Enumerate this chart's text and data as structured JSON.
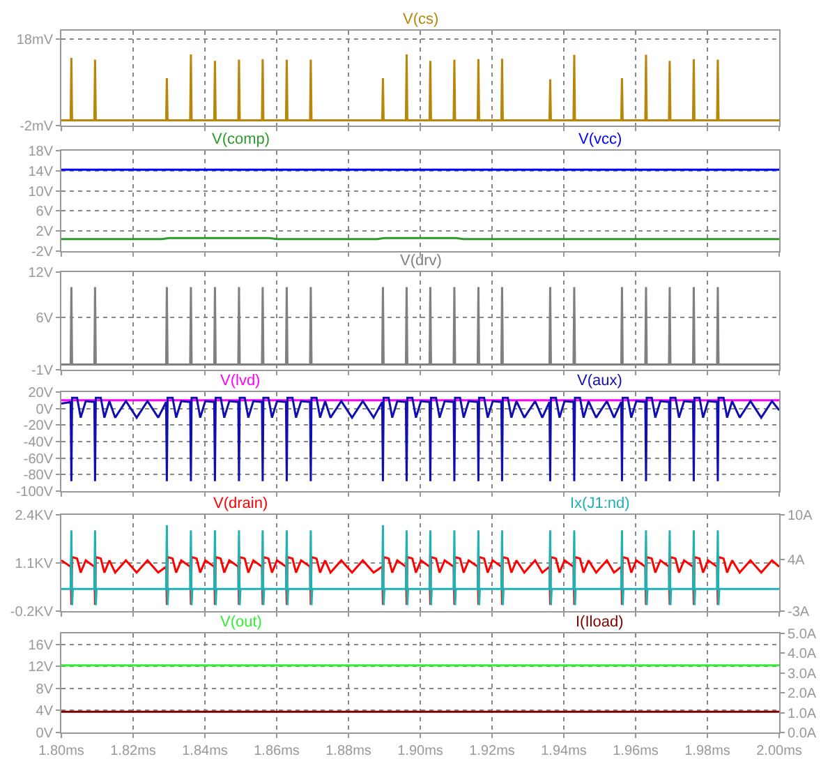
{
  "chart_data": [
    {
      "type": "line",
      "line_style": "solid",
      "grid": true,
      "tick_labels": "y",
      "xlim": [
        1.8,
        2.0
      ],
      "xticks": [
        {
          "value": 1.8,
          "label": null
        },
        {
          "value": 1.82,
          "label": null
        },
        {
          "value": 1.84,
          "label": null
        },
        {
          "value": 1.86,
          "label": null
        },
        {
          "value": 1.88,
          "label": null
        },
        {
          "value": 1.9,
          "label": null
        },
        {
          "value": 1.92,
          "label": null
        },
        {
          "value": 1.94,
          "label": null
        },
        {
          "value": 1.96,
          "label": null
        },
        {
          "value": 1.98,
          "label": null
        },
        {
          "value": 2.0,
          "label": null
        }
      ],
      "ylim": [
        -2,
        20
      ],
      "yticks": [
        {
          "value": -2,
          "label": "-2mV"
        },
        {
          "value": 18,
          "label": "18mV"
        }
      ],
      "series": [
        {
          "name": "V(cs)",
          "color": "#b8860b",
          "x": [
            1.8,
            1.8026,
            1.8028,
            1.803,
            1.8092,
            1.8094,
            1.8096,
            1.8292,
            1.8294,
            1.8296,
            1.8359,
            1.8361,
            1.8363,
            1.8426,
            1.8428,
            1.843,
            1.8493,
            1.8495,
            1.8497,
            1.8559,
            1.8561,
            1.8563,
            1.8626,
            1.8628,
            1.863,
            1.8693,
            1.8695,
            1.8697,
            1.8894,
            1.8896,
            1.8898,
            1.896,
            1.8962,
            1.8964,
            1.9026,
            1.9028,
            1.903,
            1.9093,
            1.9095,
            1.9097,
            1.916,
            1.9162,
            1.9164,
            1.9226,
            1.9228,
            1.923,
            1.936,
            1.9362,
            1.9364,
            1.9427,
            1.9429,
            1.9431,
            1.956,
            1.9562,
            1.9564,
            1.9627,
            1.9629,
            1.9631,
            1.9693,
            1.9695,
            1.9697,
            1.976,
            1.9762,
            1.9764,
            1.9827,
            1.9829,
            1.9831,
            2.0
          ],
          "values": [
            -0.8,
            -0.8,
            13.7,
            -0.8,
            -0.8,
            13.3,
            -0.8,
            -0.8,
            9.0,
            -0.8,
            -0.8,
            14.5,
            -0.8,
            -0.8,
            13.0,
            -0.8,
            -0.8,
            13.3,
            -0.8,
            -0.8,
            13.4,
            -0.8,
            -0.8,
            13.3,
            -0.8,
            -0.8,
            13.3,
            -0.8,
            -0.8,
            9.0,
            -0.8,
            -0.8,
            14.5,
            -0.8,
            -0.8,
            13.0,
            -0.8,
            -0.8,
            13.3,
            -0.8,
            -0.8,
            13.4,
            -0.8,
            -0.8,
            13.5,
            -0.8,
            -0.8,
            8.7,
            -0.8,
            -0.8,
            14.4,
            -0.8,
            -0.8,
            9.0,
            -0.8,
            -0.8,
            14.4,
            -0.8,
            -0.8,
            13.0,
            -0.8,
            -0.8,
            13.4,
            -0.8,
            -0.8,
            13.3,
            -0.8,
            -0.8
          ]
        }
      ]
    },
    {
      "type": "line",
      "line_style": "solid",
      "grid": true,
      "tick_labels": "y",
      "xlim": [
        1.8,
        2.0
      ],
      "xticks": [
        {
          "value": 1.8,
          "label": null
        },
        {
          "value": 1.82,
          "label": null
        },
        {
          "value": 1.84,
          "label": null
        },
        {
          "value": 1.86,
          "label": null
        },
        {
          "value": 1.88,
          "label": null
        },
        {
          "value": 1.9,
          "label": null
        },
        {
          "value": 1.92,
          "label": null
        },
        {
          "value": 1.94,
          "label": null
        },
        {
          "value": 1.96,
          "label": null
        },
        {
          "value": 1.98,
          "label": null
        },
        {
          "value": 2.0,
          "label": null
        }
      ],
      "ylim": [
        -2,
        18
      ],
      "yticks": [
        {
          "value": -2,
          "label": "-2V"
        },
        {
          "value": 2,
          "label": "2V"
        },
        {
          "value": 6,
          "label": "6V"
        },
        {
          "value": 10,
          "label": "10V"
        },
        {
          "value": 14,
          "label": "14V"
        },
        {
          "value": 18,
          "label": "18V"
        }
      ],
      "series": [
        {
          "name": "V(comp)",
          "color": "#2e9a2e",
          "x": [
            1.8,
            1.828,
            1.83,
            1.858,
            1.86,
            1.888,
            1.89,
            1.91,
            1.912,
            2.0
          ],
          "values": [
            0.4,
            0.4,
            0.6,
            0.6,
            0.4,
            0.4,
            0.6,
            0.6,
            0.4,
            0.4
          ]
        },
        {
          "name": "V(vcc)",
          "color": "#0000ff",
          "x": [
            1.8,
            2.0
          ],
          "values": [
            14.2,
            14.2
          ]
        }
      ]
    },
    {
      "type": "line",
      "line_style": "solid",
      "grid": true,
      "tick_labels": "y",
      "xlim": [
        1.8,
        2.0
      ],
      "xticks": [
        {
          "value": 1.8,
          "label": null
        },
        {
          "value": 1.82,
          "label": null
        },
        {
          "value": 1.84,
          "label": null
        },
        {
          "value": 1.86,
          "label": null
        },
        {
          "value": 1.88,
          "label": null
        },
        {
          "value": 1.9,
          "label": null
        },
        {
          "value": 1.92,
          "label": null
        },
        {
          "value": 1.94,
          "label": null
        },
        {
          "value": 1.96,
          "label": null
        },
        {
          "value": 1.98,
          "label": null
        },
        {
          "value": 2.0,
          "label": null
        }
      ],
      "ylim": [
        -1,
        12
      ],
      "yticks": [
        {
          "value": -1,
          "label": "-1V"
        },
        {
          "value": 6,
          "label": "6V"
        },
        {
          "value": 12,
          "label": "12V"
        }
      ],
      "series": [
        {
          "name": "V(drv)",
          "color": "#808080",
          "x": [
            1.8,
            1.8026,
            1.8028,
            1.803,
            1.8092,
            1.8094,
            1.8096,
            1.8292,
            1.8294,
            1.8296,
            1.8359,
            1.8361,
            1.8363,
            1.8426,
            1.8428,
            1.843,
            1.8493,
            1.8495,
            1.8497,
            1.8559,
            1.8561,
            1.8563,
            1.8626,
            1.8628,
            1.863,
            1.8693,
            1.8695,
            1.8697,
            1.8894,
            1.8896,
            1.8898,
            1.896,
            1.8962,
            1.8964,
            1.9026,
            1.9028,
            1.903,
            1.9093,
            1.9095,
            1.9097,
            1.916,
            1.9162,
            1.9164,
            1.9226,
            1.9228,
            1.923,
            1.936,
            1.9362,
            1.9364,
            1.9427,
            1.9429,
            1.9431,
            1.956,
            1.9562,
            1.9564,
            1.9627,
            1.9629,
            1.9631,
            1.9693,
            1.9695,
            1.9697,
            1.976,
            1.9762,
            1.9764,
            1.9827,
            1.9829,
            1.9831,
            2.0
          ],
          "values": [
            -0.3,
            -0.3,
            10,
            -0.3,
            -0.3,
            10,
            -0.3,
            -0.3,
            10,
            -0.3,
            -0.3,
            10,
            -0.3,
            -0.3,
            10,
            -0.3,
            -0.3,
            10,
            -0.3,
            -0.3,
            10,
            -0.3,
            -0.3,
            10,
            -0.3,
            -0.3,
            10,
            -0.3,
            -0.3,
            10,
            -0.3,
            -0.3,
            10,
            -0.3,
            -0.3,
            10,
            -0.3,
            -0.3,
            10,
            -0.3,
            -0.3,
            10,
            -0.3,
            -0.3,
            10,
            -0.3,
            -0.3,
            10,
            -0.3,
            -0.3,
            10,
            -0.3,
            -0.3,
            10,
            -0.3,
            -0.3,
            10,
            -0.3,
            -0.3,
            10,
            -0.3,
            -0.3,
            10,
            -0.3,
            -0.3,
            10,
            -0.3,
            -0.3
          ]
        }
      ]
    },
    {
      "type": "line",
      "line_style": "solid",
      "grid": true,
      "tick_labels": "y",
      "xlim": [
        1.8,
        2.0
      ],
      "xticks": [
        {
          "value": 1.8,
          "label": null
        },
        {
          "value": 1.82,
          "label": null
        },
        {
          "value": 1.84,
          "label": null
        },
        {
          "value": 1.86,
          "label": null
        },
        {
          "value": 1.88,
          "label": null
        },
        {
          "value": 1.9,
          "label": null
        },
        {
          "value": 1.92,
          "label": null
        },
        {
          "value": 1.94,
          "label": null
        },
        {
          "value": 1.96,
          "label": null
        },
        {
          "value": 1.98,
          "label": null
        },
        {
          "value": 2.0,
          "label": null
        }
      ],
      "ylim": [
        -100,
        20
      ],
      "yticks": [
        {
          "value": -100,
          "label": "-100V"
        },
        {
          "value": -80,
          "label": "-80V"
        },
        {
          "value": -60,
          "label": "-60V"
        },
        {
          "value": -40,
          "label": "-40V"
        },
        {
          "value": -20,
          "label": "-20V"
        },
        {
          "value": 0,
          "label": "0V"
        },
        {
          "value": 20,
          "label": "20V"
        }
      ],
      "series": [
        {
          "name": "V(lvd)",
          "color": "#ff00ff",
          "x": [
            1.8,
            2.0
          ],
          "values": [
            10,
            10
          ]
        },
        {
          "name": "V(aux)",
          "color": "#1010b0",
          "x": [
            1.8,
            1.8026,
            1.8028,
            1.803,
            1.8044,
            1.8054,
            1.8068,
            1.8092,
            1.8094,
            1.8096,
            1.811,
            1.812,
            1.8134,
            1.815,
            1.818,
            1.821,
            1.824,
            1.827,
            1.8292,
            1.8294,
            1.8296,
            1.831,
            1.832,
            1.8334,
            1.8359,
            1.8361,
            1.8363,
            1.8377,
            1.8387,
            1.8401,
            1.8426,
            1.8428,
            1.843,
            1.8444,
            1.8454,
            1.8468,
            1.8493,
            1.8495,
            1.8497,
            1.8511,
            1.8521,
            1.8535,
            1.8559,
            1.8561,
            1.8563,
            1.8577,
            1.8587,
            1.8601,
            1.8626,
            1.8628,
            1.863,
            1.8644,
            1.8654,
            1.8668,
            1.8693,
            1.8695,
            1.8697,
            1.8711,
            1.8721,
            1.8735,
            1.875,
            1.878,
            1.881,
            1.884,
            1.887,
            1.8894,
            1.8896,
            1.8898,
            1.8912,
            1.8922,
            1.8936,
            1.896,
            1.8962,
            1.8964,
            1.8978,
            1.8988,
            1.9002,
            1.9026,
            1.9028,
            1.903,
            1.9044,
            1.9054,
            1.9068,
            1.9093,
            1.9095,
            1.9097,
            1.9111,
            1.9121,
            1.9135,
            1.916,
            1.9162,
            1.9164,
            1.9178,
            1.9188,
            1.9202,
            1.9226,
            1.9228,
            1.923,
            1.9244,
            1.9254,
            1.9268,
            1.929,
            1.932,
            1.934,
            1.936,
            1.9362,
            1.9364,
            1.9378,
            1.9388,
            1.9402,
            1.9427,
            1.9429,
            1.9431,
            1.9445,
            1.9455,
            1.9469,
            1.949,
            1.952,
            1.954,
            1.956,
            1.9562,
            1.9564,
            1.9578,
            1.9588,
            1.9602,
            1.9627,
            1.9629,
            1.9631,
            1.9645,
            1.9655,
            1.9669,
            1.9693,
            1.9695,
            1.9697,
            1.9711,
            1.9721,
            1.9735,
            1.976,
            1.9762,
            1.9764,
            1.9778,
            1.9788,
            1.9802,
            1.9827,
            1.9829,
            1.9831,
            1.9845,
            1.9855,
            1.9869,
            1.989,
            1.992,
            1.995,
            1.998,
            2.0
          ],
          "values": [
            6,
            8,
            -88,
            13,
            13,
            -11,
            9,
            8,
            -88,
            13,
            13,
            -11,
            9,
            -11,
            9,
            -11,
            9,
            -11,
            8,
            -88,
            13,
            13,
            -11,
            9,
            8,
            -88,
            13,
            13,
            -11,
            9,
            8,
            -88,
            13,
            13,
            -11,
            9,
            8,
            -88,
            13,
            13,
            -11,
            9,
            8,
            -88,
            13,
            13,
            -11,
            9,
            8,
            -88,
            13,
            13,
            -11,
            9,
            8,
            -88,
            13,
            13,
            -11,
            9,
            -11,
            9,
            -11,
            9,
            -11,
            8,
            -88,
            13,
            13,
            -11,
            9,
            8,
            -88,
            13,
            13,
            -11,
            9,
            8,
            -88,
            13,
            13,
            -11,
            9,
            8,
            -88,
            13,
            13,
            -11,
            9,
            8,
            -88,
            13,
            13,
            -11,
            9,
            8,
            -88,
            13,
            13,
            -11,
            9,
            -11,
            9,
            -11,
            8,
            -88,
            13,
            13,
            -11,
            9,
            8,
            -88,
            13,
            13,
            -11,
            9,
            -11,
            9,
            -11,
            8,
            -88,
            13,
            13,
            -11,
            9,
            8,
            -88,
            13,
            13,
            -11,
            9,
            8,
            -88,
            13,
            13,
            -11,
            9,
            8,
            -88,
            13,
            13,
            -11,
            9,
            8,
            -88,
            13,
            13,
            -11,
            9,
            -11,
            9,
            -11,
            9,
            -2
          ]
        }
      ]
    },
    {
      "type": "line",
      "line_style": "solid",
      "grid": true,
      "tick_labels": "y",
      "xlim": [
        1.8,
        2.0
      ],
      "xticks": [
        {
          "value": 1.8,
          "label": null
        },
        {
          "value": 1.82,
          "label": null
        },
        {
          "value": 1.84,
          "label": null
        },
        {
          "value": 1.86,
          "label": null
        },
        {
          "value": 1.88,
          "label": null
        },
        {
          "value": 1.9,
          "label": null
        },
        {
          "value": 1.92,
          "label": null
        },
        {
          "value": 1.94,
          "label": null
        },
        {
          "value": 1.96,
          "label": null
        },
        {
          "value": 1.98,
          "label": null
        },
        {
          "value": 2.0,
          "label": null
        }
      ],
      "ylim": [
        -0.2,
        2.4
      ],
      "yticks": [
        {
          "value": -0.2,
          "label": "-0.2KV"
        },
        {
          "value": 1.1,
          "label": "1.1KV"
        },
        {
          "value": 2.4,
          "label": "2.4KV"
        }
      ],
      "y2lim": [
        -3,
        10
      ],
      "y2ticks": [
        {
          "value": -3,
          "label": "-3A"
        },
        {
          "value": 4,
          "label": "4A"
        },
        {
          "value": 10,
          "label": "10A"
        }
      ],
      "series": [
        {
          "name": "V(drain)",
          "color": "#ff0000",
          "x": [
            1.8,
            1.8026,
            1.8028,
            1.803,
            1.8044,
            1.8054,
            1.8068,
            1.8092,
            1.8094,
            1.8096,
            1.811,
            1.812,
            1.8134,
            1.815,
            1.818,
            1.821,
            1.824,
            1.827,
            1.8292,
            1.8294,
            1.8296,
            1.831,
            1.832,
            1.8334,
            1.8359,
            1.8361,
            1.8363,
            1.8377,
            1.8387,
            1.8401,
            1.8426,
            1.8428,
            1.843,
            1.8444,
            1.8454,
            1.8468,
            1.8493,
            1.8495,
            1.8497,
            1.8511,
            1.8521,
            1.8535,
            1.8559,
            1.8561,
            1.8563,
            1.8577,
            1.8587,
            1.8601,
            1.8626,
            1.8628,
            1.863,
            1.8644,
            1.8654,
            1.8668,
            1.8693,
            1.8695,
            1.8697,
            1.8711,
            1.8721,
            1.8735,
            1.875,
            1.878,
            1.881,
            1.884,
            1.887,
            1.8894,
            1.8896,
            1.8898,
            1.8912,
            1.8922,
            1.8936,
            1.896,
            1.8962,
            1.8964,
            1.8978,
            1.8988,
            1.9002,
            1.9026,
            1.9028,
            1.903,
            1.9044,
            1.9054,
            1.9068,
            1.9093,
            1.9095,
            1.9097,
            1.9111,
            1.9121,
            1.9135,
            1.916,
            1.9162,
            1.9164,
            1.9178,
            1.9188,
            1.9202,
            1.9226,
            1.9228,
            1.923,
            1.9244,
            1.9254,
            1.9268,
            1.929,
            1.932,
            1.934,
            1.936,
            1.9362,
            1.9364,
            1.9378,
            1.9388,
            1.9402,
            1.9427,
            1.9429,
            1.9431,
            1.9445,
            1.9455,
            1.9469,
            1.949,
            1.952,
            1.954,
            1.956,
            1.9562,
            1.9564,
            1.9578,
            1.9588,
            1.9602,
            1.9627,
            1.9629,
            1.9631,
            1.9645,
            1.9655,
            1.9669,
            1.9693,
            1.9695,
            1.9697,
            1.9711,
            1.9721,
            1.9735,
            1.976,
            1.9762,
            1.9764,
            1.9778,
            1.9788,
            1.9802,
            1.9827,
            1.9829,
            1.9831,
            1.9845,
            1.9855,
            1.9869,
            1.989,
            1.992,
            1.995,
            1.998,
            2.0
          ],
          "values": [
            1.17,
            1.0,
            -0.03,
            1.26,
            1.22,
            0.84,
            1.17,
            1.0,
            -0.03,
            1.26,
            1.22,
            0.84,
            1.17,
            0.84,
            1.17,
            0.84,
            1.17,
            0.84,
            1.0,
            -0.03,
            1.26,
            1.22,
            0.84,
            1.17,
            1.0,
            -0.03,
            1.26,
            1.22,
            0.84,
            1.17,
            1.0,
            -0.03,
            1.26,
            1.22,
            0.84,
            1.17,
            1.0,
            -0.03,
            1.26,
            1.22,
            0.84,
            1.17,
            1.0,
            -0.03,
            1.26,
            1.22,
            0.84,
            1.17,
            1.0,
            -0.03,
            1.26,
            1.22,
            0.84,
            1.17,
            1.0,
            -0.03,
            1.26,
            1.22,
            0.84,
            1.17,
            0.84,
            1.17,
            0.84,
            1.17,
            0.84,
            1.0,
            -0.03,
            1.26,
            1.22,
            0.84,
            1.17,
            1.0,
            -0.03,
            1.26,
            1.22,
            0.84,
            1.17,
            1.0,
            -0.03,
            1.26,
            1.22,
            0.84,
            1.17,
            1.0,
            -0.03,
            1.26,
            1.22,
            0.84,
            1.17,
            1.0,
            -0.03,
            1.26,
            1.22,
            0.84,
            1.17,
            1.0,
            -0.03,
            1.26,
            1.22,
            0.84,
            1.17,
            0.84,
            1.17,
            0.84,
            1.0,
            -0.03,
            1.26,
            1.22,
            0.84,
            1.17,
            1.0,
            -0.03,
            1.26,
            1.22,
            0.84,
            1.17,
            0.84,
            1.17,
            0.84,
            1.0,
            -0.03,
            1.26,
            1.22,
            0.84,
            1.17,
            1.0,
            -0.03,
            1.26,
            1.22,
            0.84,
            1.17,
            1.0,
            -0.03,
            1.26,
            1.22,
            0.84,
            1.17,
            1.0,
            -0.03,
            1.26,
            1.22,
            0.84,
            1.17,
            1.0,
            -0.03,
            1.26,
            1.22,
            0.84,
            1.17,
            0.84,
            1.17,
            0.84,
            1.17,
            1.0
          ]
        },
        {
          "name": "Ix(J1:nd)",
          "color": "#20b2b2",
          "axis": "y2",
          "x": [
            1.8,
            1.8026,
            1.8028,
            1.803,
            1.8032,
            1.8092,
            1.8094,
            1.8096,
            1.8098,
            1.8292,
            1.8294,
            1.8296,
            1.8298,
            1.8359,
            1.8361,
            1.8363,
            1.8365,
            1.8426,
            1.8428,
            1.843,
            1.8432,
            1.8493,
            1.8495,
            1.8497,
            1.8499,
            1.8559,
            1.8561,
            1.8563,
            1.8565,
            1.8626,
            1.8628,
            1.863,
            1.8632,
            1.8693,
            1.8695,
            1.8697,
            1.8699,
            1.8894,
            1.8896,
            1.8898,
            1.89,
            1.896,
            1.8962,
            1.8964,
            1.8966,
            1.9026,
            1.9028,
            1.903,
            1.9032,
            1.9093,
            1.9095,
            1.9097,
            1.9099,
            1.916,
            1.9162,
            1.9164,
            1.9166,
            1.9226,
            1.9228,
            1.923,
            1.9232,
            1.936,
            1.9362,
            1.9364,
            1.9366,
            1.9427,
            1.9429,
            1.9431,
            1.9433,
            1.956,
            1.9562,
            1.9564,
            1.9566,
            1.9627,
            1.9629,
            1.9631,
            1.9633,
            1.9693,
            1.9695,
            1.9697,
            1.9699,
            1.976,
            1.9762,
            1.9764,
            1.9766,
            1.9827,
            1.9829,
            1.9831,
            1.9833,
            2.0
          ],
          "values": [
            0,
            0,
            7.9,
            -2.2,
            0,
            0,
            7.9,
            -2.2,
            0,
            0,
            8.6,
            -2.2,
            0,
            0,
            7.9,
            -2.2,
            0,
            0,
            7.9,
            -2.2,
            0,
            0,
            7.9,
            -2.2,
            0,
            0,
            7.9,
            -2.2,
            0,
            0,
            7.9,
            -2.2,
            0,
            0,
            7.9,
            -2.2,
            0,
            0,
            8.6,
            -2.2,
            0,
            0,
            7.9,
            -2.2,
            0,
            0,
            7.9,
            -2.2,
            0,
            0,
            7.9,
            -2.2,
            0,
            0,
            7.9,
            -2.2,
            0,
            0,
            7.9,
            -2.2,
            0,
            0,
            7.9,
            -2.2,
            0,
            0,
            7.9,
            -2.2,
            0,
            0,
            7.9,
            -2.2,
            0,
            0,
            7.9,
            -2.2,
            0,
            0,
            7.9,
            -2.2,
            0,
            0,
            7.9,
            -2.2,
            0,
            0,
            7.9,
            -2.2,
            0,
            0
          ]
        }
      ]
    },
    {
      "type": "line",
      "line_style": "solid",
      "grid": true,
      "xlim": [
        1.8,
        2.0
      ],
      "xticks": [
        {
          "value": 1.8,
          "label": "1.80ms"
        },
        {
          "value": 1.82,
          "label": "1.82ms"
        },
        {
          "value": 1.84,
          "label": "1.84ms"
        },
        {
          "value": 1.86,
          "label": "1.86ms"
        },
        {
          "value": 1.88,
          "label": "1.88ms"
        },
        {
          "value": 1.9,
          "label": "1.90ms"
        },
        {
          "value": 1.92,
          "label": "1.92ms"
        },
        {
          "value": 1.94,
          "label": "1.94ms"
        },
        {
          "value": 1.96,
          "label": "1.96ms"
        },
        {
          "value": 1.98,
          "label": "1.98ms"
        },
        {
          "value": 2.0,
          "label": "2.00ms"
        }
      ],
      "ylim": [
        0,
        18
      ],
      "yticks": [
        {
          "value": 0,
          "label": "0V"
        },
        {
          "value": 4,
          "label": "4V"
        },
        {
          "value": 8,
          "label": "8V"
        },
        {
          "value": 12,
          "label": "12V"
        },
        {
          "value": 16,
          "label": "16V"
        }
      ],
      "y2lim": [
        0,
        5
      ],
      "y2ticks": [
        {
          "value": 0,
          "label": "0.0A"
        },
        {
          "value": 1,
          "label": "1.0A"
        },
        {
          "value": 2,
          "label": "2.0A"
        },
        {
          "value": 3,
          "label": "3.0A"
        },
        {
          "value": 4,
          "label": "4.0A"
        },
        {
          "value": 5,
          "label": "5.0A"
        }
      ],
      "series": [
        {
          "name": "V(out)",
          "color": "#33ee33",
          "x": [
            1.8,
            2.0
          ],
          "values": [
            12.2,
            12.2
          ]
        },
        {
          "name": "I(Iload)",
          "color": "#800000",
          "axis": "y2",
          "x": [
            1.8,
            2.0
          ],
          "values": [
            1.05,
            1.05
          ]
        }
      ]
    }
  ]
}
